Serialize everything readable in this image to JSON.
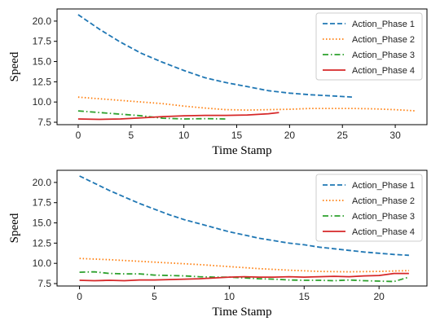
{
  "chart_data": [
    {
      "type": "line",
      "xlabel": "Time Stamp",
      "ylabel": "Speed",
      "xlim": [
        -2,
        33
      ],
      "ylim": [
        7.2,
        21.5
      ],
      "xticks": [
        0,
        5,
        10,
        15,
        20,
        25,
        30
      ],
      "yticks": [
        7.5,
        10.0,
        12.5,
        15.0,
        17.5,
        20.0
      ],
      "legend_position": "top-right",
      "grid": false,
      "series": [
        {
          "name": "Action_Phase 1",
          "color": "#1f77b4",
          "dash": "dashed",
          "x": [
            0,
            2,
            4,
            6,
            8,
            10,
            12,
            14,
            16,
            18,
            20,
            22,
            24,
            26
          ],
          "y": [
            20.8,
            19.0,
            17.4,
            16.0,
            14.9,
            13.9,
            13.0,
            12.4,
            11.9,
            11.4,
            11.1,
            10.9,
            10.75,
            10.6
          ]
        },
        {
          "name": "Action_Phase 2",
          "color": "#ff7f0e",
          "dash": "dotted",
          "x": [
            0,
            2,
            4,
            6,
            8,
            10,
            12,
            14,
            16,
            18,
            20,
            22,
            24,
            26,
            28,
            30,
            32
          ],
          "y": [
            10.6,
            10.4,
            10.2,
            10.0,
            9.8,
            9.5,
            9.25,
            9.05,
            9.0,
            9.05,
            9.1,
            9.2,
            9.2,
            9.2,
            9.15,
            9.05,
            8.9
          ]
        },
        {
          "name": "Action_Phase 3",
          "color": "#2ca02c",
          "dash": "dashdot",
          "x": [
            0,
            2,
            4,
            6,
            8,
            10,
            12,
            14
          ],
          "y": [
            8.9,
            8.7,
            8.5,
            8.3,
            8.0,
            7.9,
            7.95,
            7.9
          ]
        },
        {
          "name": "Action_Phase 4",
          "color": "#d62728",
          "dash": "solid",
          "x": [
            0,
            2,
            4,
            6,
            8,
            10,
            12,
            14,
            16,
            18,
            19
          ],
          "y": [
            7.9,
            7.85,
            7.9,
            8.05,
            8.2,
            8.3,
            8.35,
            8.35,
            8.4,
            8.55,
            8.7
          ]
        }
      ]
    },
    {
      "type": "line",
      "xlabel": "Time Stamp",
      "ylabel": "Speed",
      "xlim": [
        -1.5,
        23.2
      ],
      "ylim": [
        7.2,
        21.5
      ],
      "xticks": [
        0,
        5,
        10,
        15,
        20
      ],
      "yticks": [
        7.5,
        10.0,
        12.5,
        15.0,
        17.5,
        20.0
      ],
      "legend_position": "top-right",
      "grid": false,
      "series": [
        {
          "name": "Action_Phase 1",
          "color": "#1f77b4",
          "dash": "dashed",
          "x": [
            0,
            1,
            2,
            3,
            4,
            5,
            6,
            7,
            8,
            9,
            10,
            11,
            12,
            13,
            14,
            15,
            16,
            17,
            18,
            19,
            20,
            21,
            22
          ],
          "y": [
            20.8,
            19.9,
            19.0,
            18.2,
            17.4,
            16.7,
            16.0,
            15.4,
            14.9,
            14.4,
            13.9,
            13.5,
            13.1,
            12.8,
            12.5,
            12.3,
            12.0,
            11.8,
            11.6,
            11.4,
            11.25,
            11.1,
            11.0
          ]
        },
        {
          "name": "Action_Phase 2",
          "color": "#ff7f0e",
          "dash": "dotted",
          "x": [
            0,
            2,
            4,
            6,
            8,
            10,
            12,
            14,
            16,
            18,
            20,
            22
          ],
          "y": [
            10.6,
            10.45,
            10.25,
            10.05,
            9.85,
            9.6,
            9.35,
            9.15,
            9.0,
            8.95,
            9.0,
            9.1
          ]
        },
        {
          "name": "Action_Phase 3",
          "color": "#2ca02c",
          "dash": "dashdot",
          "x": [
            0,
            1,
            2,
            3,
            4,
            5,
            6,
            7,
            8,
            9,
            10,
            11,
            12,
            13,
            14,
            15,
            16,
            17,
            18,
            19,
            20,
            21,
            22
          ],
          "y": [
            8.9,
            8.95,
            8.75,
            8.7,
            8.7,
            8.55,
            8.5,
            8.45,
            8.35,
            8.3,
            8.3,
            8.2,
            8.1,
            8.05,
            7.95,
            7.9,
            7.9,
            7.85,
            7.95,
            7.85,
            7.8,
            7.75,
            8.3
          ]
        },
        {
          "name": "Action_Phase 4",
          "color": "#d62728",
          "dash": "solid",
          "x": [
            0,
            1,
            2,
            3,
            4,
            5,
            6,
            7,
            8,
            9,
            10,
            11,
            12,
            13,
            14,
            15,
            16,
            17,
            18,
            19,
            20,
            21,
            22
          ],
          "y": [
            7.9,
            7.85,
            7.9,
            7.85,
            7.95,
            7.95,
            8.0,
            8.05,
            8.1,
            8.2,
            8.3,
            8.35,
            8.3,
            8.3,
            8.35,
            8.3,
            8.35,
            8.4,
            8.35,
            8.45,
            8.5,
            8.75,
            8.75
          ]
        }
      ]
    }
  ]
}
